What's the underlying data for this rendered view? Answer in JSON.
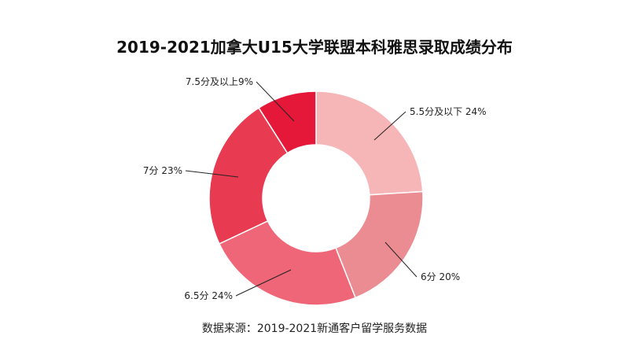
{
  "chart_data": {
    "type": "pie",
    "title": "2019-2021加拿大U15大学联盟本科雅思录取成绩分布",
    "source": "数据来源：2019-2021新通客户留学服务数据",
    "donut": true,
    "slices": [
      {
        "label": "5.5分及以下 24%",
        "value": 24,
        "color": "#f6b5b7"
      },
      {
        "label": "6分 20%",
        "value": 20,
        "color": "#ea8c92"
      },
      {
        "label": "6.5分 24%",
        "value": 24,
        "color": "#ee6677"
      },
      {
        "label": "7分 23%",
        "value": 23,
        "color": "#e83b52"
      },
      {
        "label": "7.5分及以上9%",
        "value": 9,
        "color": "#e5183a"
      }
    ]
  }
}
